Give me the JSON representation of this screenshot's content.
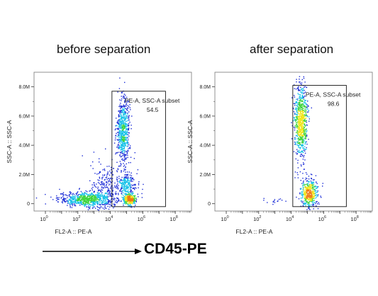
{
  "chart_data": [
    {
      "type": "scatter",
      "title": "before separation",
      "xlabel": "FL2-A :: PE-A",
      "ylabel": "SSC-A :: SSC-A",
      "x_scale": "log",
      "x_ticks": [
        {
          "value": 1,
          "base": "10",
          "exp": "0"
        },
        {
          "value": 100,
          "base": "10",
          "exp": "2"
        },
        {
          "value": 10000,
          "base": "10",
          "exp": "4"
        },
        {
          "value": 1000000,
          "base": "10",
          "exp": "6"
        },
        {
          "value": 100000000,
          "base": "10",
          "exp": "8"
        }
      ],
      "y_ticks": [
        {
          "value": 0,
          "label": "0"
        },
        {
          "value": 2000000,
          "label": "2.0M"
        },
        {
          "value": 4000000,
          "label": "4.0M"
        },
        {
          "value": 6000000,
          "label": "6.0M"
        },
        {
          "value": 8000000,
          "label": "8.0M"
        }
      ],
      "xlim_log10": [
        -0.7,
        9.0
      ],
      "ylim": [
        -500000,
        9000000
      ],
      "gate": {
        "name": "PE-A, SSC-A subset",
        "value": "54.5",
        "x_range_log10": [
          4.1,
          7.4
        ],
        "y_range": [
          -200000,
          7700000
        ]
      },
      "populations": [
        {
          "cx_log10": 2.6,
          "cy": 300000,
          "sx": 0.9,
          "sy": 250000,
          "n": 700
        },
        {
          "cx_log10": 3.7,
          "cy": 900000,
          "sx": 0.45,
          "sy": 900000,
          "n": 250
        },
        {
          "cx_log10": 4.8,
          "cy": 5000000,
          "sx": 0.2,
          "sy": 1100000,
          "n": 650
        },
        {
          "cx_log10": 5.2,
          "cy": 300000,
          "sx": 0.2,
          "sy": 180000,
          "n": 320
        },
        {
          "cx_log10": 5.0,
          "cy": 1300000,
          "sx": 0.3,
          "sy": 450000,
          "n": 260
        }
      ]
    },
    {
      "type": "scatter",
      "title": "after separation",
      "xlabel": "FL2-A :: PE-A",
      "ylabel": "SSC-A :: SSC-A",
      "x_scale": "log",
      "x_ticks": [
        {
          "value": 1,
          "base": "10",
          "exp": "0"
        },
        {
          "value": 100,
          "base": "10",
          "exp": "2"
        },
        {
          "value": 10000,
          "base": "10",
          "exp": "4"
        },
        {
          "value": 1000000,
          "base": "10",
          "exp": "6"
        },
        {
          "value": 100000000,
          "base": "10",
          "exp": "8"
        }
      ],
      "y_ticks": [
        {
          "value": 0,
          "label": "0"
        },
        {
          "value": 2000000,
          "label": "2.0M"
        },
        {
          "value": 4000000,
          "label": "4.0M"
        },
        {
          "value": 6000000,
          "label": "6.0M"
        },
        {
          "value": 8000000,
          "label": "8.0M"
        }
      ],
      "xlim_log10": [
        -0.7,
        9.0
      ],
      "ylim": [
        -500000,
        9000000
      ],
      "gate": {
        "name": "PE-A, SSC-A subset",
        "value": "98.6",
        "x_range_log10": [
          4.1,
          7.4
        ],
        "y_range": [
          -200000,
          8100000
        ]
      },
      "populations": [
        {
          "cx_log10": 4.6,
          "cy": 5500000,
          "sx": 0.2,
          "sy": 1300000,
          "n": 750
        },
        {
          "cx_log10": 5.1,
          "cy": 700000,
          "sx": 0.3,
          "sy": 500000,
          "n": 450
        },
        {
          "cx_log10": 3.0,
          "cy": 200000,
          "sx": 0.6,
          "sy": 150000,
          "n": 15
        }
      ]
    }
  ],
  "marker_label": "CD45-PE",
  "colors": {
    "low": "#1a2bd6",
    "mid": "#18c2e8",
    "midhigh": "#3cd43a",
    "high": "#f0e51a",
    "top": "#f07a14"
  }
}
